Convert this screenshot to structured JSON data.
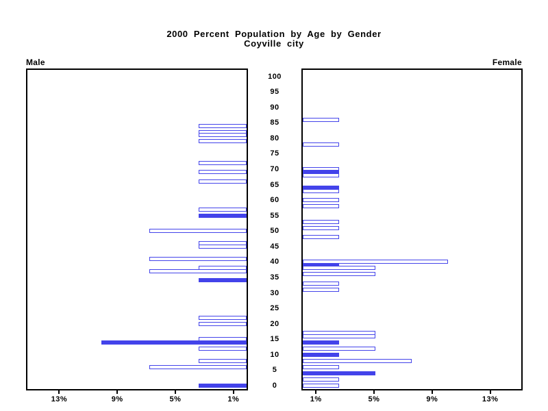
{
  "title": {
    "line1": "2000 Percent Population by Age by Gender",
    "line2": "Coyville city"
  },
  "panels": {
    "left_label": "Male",
    "right_label": "Female"
  },
  "colors": {
    "bar": "#4343ea",
    "frame": "#000000",
    "text": "#000000",
    "background": "#ffffff"
  },
  "chart_data": {
    "type": "bar",
    "subtype": "population-pyramid",
    "title": "2000 Percent Population by Age by Gender",
    "subtitle": "Coyville city",
    "xlabel_unit": "percent of gender population",
    "ylabel": "age in single years",
    "age_axis": {
      "min": 0,
      "max": 100,
      "tick_step": 5,
      "tick_labels": [
        "100",
        "95",
        "90",
        "85",
        "80",
        "75",
        "70",
        "65",
        "60",
        "55",
        "50",
        "45",
        "40",
        "35",
        "30",
        "25",
        "20",
        "15",
        "10",
        "5",
        "0"
      ]
    },
    "pct_axis": {
      "max": 15.3,
      "tick_values": [
        13,
        9,
        5,
        1
      ],
      "left_tick_labels": [
        "13%",
        "9%",
        "5%",
        "1%"
      ],
      "right_tick_labels": [
        "1%",
        "5%",
        "9%",
        "13%"
      ]
    },
    "legend": "none",
    "grid": false,
    "bar_style_note": "outline = hollow blue-bordered bar, filled = solid blue bar",
    "series": [
      {
        "name": "Male",
        "side": "left",
        "bars": [
          {
            "age": 84,
            "pct": 3.3,
            "filled": false
          },
          {
            "age": 82,
            "pct": 3.3,
            "filled": false
          },
          {
            "age": 81,
            "pct": 3.3,
            "filled": false
          },
          {
            "age": 79,
            "pct": 3.3,
            "filled": false
          },
          {
            "age": 72,
            "pct": 3.3,
            "filled": false
          },
          {
            "age": 69,
            "pct": 3.3,
            "filled": false
          },
          {
            "age": 66,
            "pct": 3.3,
            "filled": false
          },
          {
            "age": 57,
            "pct": 3.3,
            "filled": false
          },
          {
            "age": 55,
            "pct": 3.3,
            "filled": true
          },
          {
            "age": 50,
            "pct": 6.7,
            "filled": false
          },
          {
            "age": 46,
            "pct": 3.3,
            "filled": false
          },
          {
            "age": 45,
            "pct": 3.3,
            "filled": false
          },
          {
            "age": 41,
            "pct": 6.7,
            "filled": false
          },
          {
            "age": 38,
            "pct": 3.3,
            "filled": false
          },
          {
            "age": 37,
            "pct": 6.7,
            "filled": false
          },
          {
            "age": 34,
            "pct": 3.3,
            "filled": true
          },
          {
            "age": 22,
            "pct": 3.3,
            "filled": false
          },
          {
            "age": 20,
            "pct": 3.3,
            "filled": false
          },
          {
            "age": 15,
            "pct": 3.3,
            "filled": false
          },
          {
            "age": 14,
            "pct": 10.0,
            "filled": true
          },
          {
            "age": 12,
            "pct": 3.3,
            "filled": false
          },
          {
            "age": 8,
            "pct": 3.3,
            "filled": false
          },
          {
            "age": 6,
            "pct": 6.7,
            "filled": false
          },
          {
            "age": 0,
            "pct": 3.3,
            "filled": true
          }
        ]
      },
      {
        "name": "Female",
        "side": "right",
        "bars": [
          {
            "age": 86,
            "pct": 2.5,
            "filled": false
          },
          {
            "age": 78,
            "pct": 2.5,
            "filled": false
          },
          {
            "age": 70,
            "pct": 2.5,
            "filled": false
          },
          {
            "age": 69,
            "pct": 2.5,
            "filled": true
          },
          {
            "age": 68,
            "pct": 2.5,
            "filled": false
          },
          {
            "age": 64,
            "pct": 2.5,
            "filled": true
          },
          {
            "age": 63,
            "pct": 2.5,
            "filled": false
          },
          {
            "age": 60,
            "pct": 2.5,
            "filled": false
          },
          {
            "age": 58,
            "pct": 2.5,
            "filled": false
          },
          {
            "age": 53,
            "pct": 2.5,
            "filled": false
          },
          {
            "age": 51,
            "pct": 2.5,
            "filled": false
          },
          {
            "age": 48,
            "pct": 2.5,
            "filled": false
          },
          {
            "age": 40,
            "pct": 10.0,
            "filled": false
          },
          {
            "age": 39,
            "pct": 2.5,
            "filled": true
          },
          {
            "age": 38,
            "pct": 5.0,
            "filled": false
          },
          {
            "age": 36,
            "pct": 5.0,
            "filled": false
          },
          {
            "age": 33,
            "pct": 2.5,
            "filled": false
          },
          {
            "age": 31,
            "pct": 2.5,
            "filled": false
          },
          {
            "age": 17,
            "pct": 5.0,
            "filled": false
          },
          {
            "age": 16,
            "pct": 5.0,
            "filled": false
          },
          {
            "age": 14,
            "pct": 2.5,
            "filled": true
          },
          {
            "age": 12,
            "pct": 5.0,
            "filled": false
          },
          {
            "age": 10,
            "pct": 2.5,
            "filled": true
          },
          {
            "age": 8,
            "pct": 7.5,
            "filled": false
          },
          {
            "age": 6,
            "pct": 2.5,
            "filled": false
          },
          {
            "age": 4,
            "pct": 5.0,
            "filled": true
          },
          {
            "age": 2,
            "pct": 2.5,
            "filled": false
          },
          {
            "age": 0,
            "pct": 2.5,
            "filled": false
          }
        ]
      }
    ]
  }
}
